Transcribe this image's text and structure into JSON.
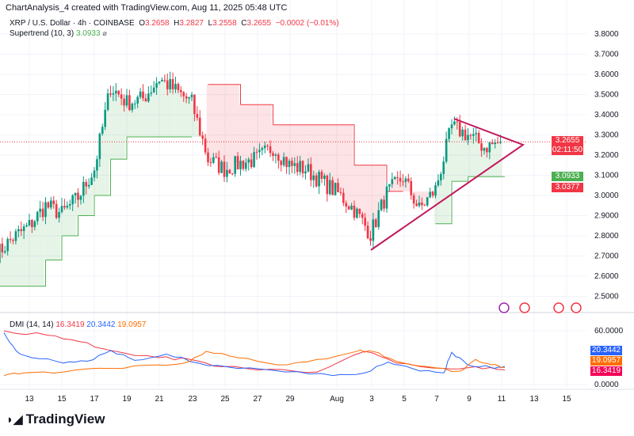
{
  "header": "ChartAnalysis_4 created with TradingView.com, Aug 11, 2025 05:48 UTC",
  "legend": {
    "symbol": "XRP / U.S. Dollar · 4h · COINBASE",
    "o_label": "O",
    "o": "3.2658",
    "h_label": "H",
    "h": "3.2827",
    "l_label": "L",
    "l": "3.2558",
    "c_label": "C",
    "c": "3.2655",
    "change": "−0.0002 (−0.01%)",
    "supertrend_label": "Supertrend (10, 3)",
    "supertrend_value": "3.0933",
    "eye_icon": "⌀",
    "dmi_label": "DMI (14, 14)",
    "dmi_adx": "16.3419",
    "dmi_plus": "20.3442",
    "dmi_minus": "19.0957"
  },
  "tags": {
    "price": "3.2655",
    "countdown": "02:11:50",
    "supertrend": "3.0933",
    "other": "3.0377",
    "dmi_plus": "20.3442",
    "dmi_minus": "19.0957",
    "dmi_adx": "16.3419"
  },
  "colors": {
    "up": "#089981",
    "down": "#f23645",
    "st_up": "#4caf50",
    "st_down": "#f23645",
    "adx": "#f23645",
    "plus_di": "#2962ff",
    "minus_di": "#ff6d00",
    "triangle": "#c2185b"
  },
  "logo": "TradingView",
  "chart_data": {
    "type": "candlestick",
    "xlabels": [
      "13",
      "15",
      "17",
      "19",
      "21",
      "23",
      "25",
      "27",
      "29",
      "Aug",
      "3",
      "5",
      "7",
      "9",
      "11",
      "13",
      "15"
    ],
    "price_ticks": [
      "3.8000",
      "3.7000",
      "3.6000",
      "3.5000",
      "3.4000",
      "3.3000",
      "3.2000",
      "3.1000",
      "3.0000",
      "2.9000",
      "2.8000",
      "2.7000",
      "2.6000",
      "2.5000"
    ],
    "dmi_ticks": [
      "60.0000",
      "0.0000"
    ],
    "ylim": [
      2.5,
      3.8
    ],
    "approx_daily_close": {
      "dates": [
        "Jul 11",
        "Jul 12",
        "Jul 13",
        "Jul 14",
        "Jul 15",
        "Jul 16",
        "Jul 17",
        "Jul 18",
        "Jul 19",
        "Jul 20",
        "Jul 21",
        "Jul 22",
        "Jul 23",
        "Jul 24",
        "Jul 25",
        "Jul 26",
        "Jul 27",
        "Jul 28",
        "Jul 29",
        "Jul 30",
        "Jul 31",
        "Aug 1",
        "Aug 2",
        "Aug 3",
        "Aug 4",
        "Aug 5",
        "Aug 6",
        "Aug 7",
        "Aug 8",
        "Aug 9",
        "Aug 10",
        "Aug 11"
      ],
      "values": [
        2.71,
        2.79,
        2.85,
        2.95,
        2.91,
        2.99,
        3.13,
        3.54,
        3.46,
        3.48,
        3.58,
        3.52,
        3.46,
        3.18,
        3.13,
        3.16,
        3.18,
        3.24,
        3.15,
        3.13,
        3.07,
        3.01,
        2.93,
        2.81,
        3.01,
        3.09,
        2.93,
        3.03,
        3.34,
        3.3,
        3.24,
        3.2655
      ]
    },
    "supertrend": {
      "dates": [
        "Jul 11",
        "Jul 13",
        "Jul 14",
        "Jul 15",
        "Jul 16",
        "Jul 17",
        "Jul 18",
        "Jul 19",
        "Jul 23",
        "Jul 24",
        "Jul 26",
        "Jul 28",
        "Aug 1",
        "Aug 2",
        "Aug 4",
        "Aug 5",
        "Aug 7",
        "Aug 8",
        "Aug 9",
        "Aug 11"
      ],
      "values": [
        2.55,
        2.55,
        2.68,
        2.8,
        2.9,
        3.0,
        3.18,
        3.29,
        3.29,
        3.55,
        3.45,
        3.35,
        3.35,
        3.15,
        3.02,
        3.02,
        2.86,
        3.07,
        3.0933,
        3.0933
      ],
      "direction": [
        "up",
        "up",
        "up",
        "up",
        "up",
        "up",
        "up",
        "up",
        "up",
        "down",
        "down",
        "down",
        "down",
        "down",
        "down",
        "down",
        "up",
        "up",
        "up",
        "up"
      ]
    },
    "dmi": {
      "adx_last": 16.3419,
      "plus_di_last": 20.3442,
      "minus_di_last": 19.0957
    }
  }
}
